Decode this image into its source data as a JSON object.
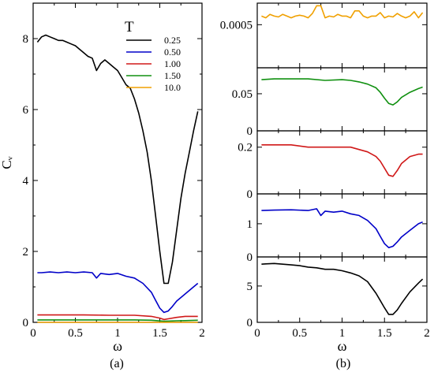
{
  "panel_labels": {
    "a": "(a)",
    "b": "(b)"
  },
  "chart_data": [
    {
      "type": "line",
      "panel": "(a)",
      "xlabel": "ω",
      "ylabel": "Cᵥ",
      "xlim": [
        0,
        2
      ],
      "ylim": [
        0,
        9
      ],
      "xticks": [
        "0",
        "0.5",
        "1",
        "1.5",
        "2"
      ],
      "yticks": [
        "0",
        "2",
        "4",
        "6",
        "8"
      ],
      "legend": {
        "title": "T",
        "position": "top-right"
      },
      "series": [
        {
          "name": "0.25",
          "color": "#000000",
          "x": [
            0.05,
            0.1,
            0.15,
            0.2,
            0.25,
            0.3,
            0.35,
            0.4,
            0.45,
            0.5,
            0.55,
            0.6,
            0.65,
            0.7,
            0.75,
            0.8,
            0.85,
            0.9,
            0.95,
            1.0,
            1.05,
            1.1,
            1.15,
            1.2,
            1.25,
            1.3,
            1.35,
            1.4,
            1.45,
            1.5,
            1.55,
            1.6,
            1.65,
            1.7,
            1.75,
            1.8,
            1.85,
            1.9,
            1.95
          ],
          "y": [
            7.9,
            8.05,
            8.1,
            8.05,
            8.0,
            7.95,
            7.95,
            7.9,
            7.85,
            7.8,
            7.7,
            7.6,
            7.5,
            7.45,
            7.1,
            7.3,
            7.4,
            7.3,
            7.2,
            7.1,
            6.9,
            6.7,
            6.6,
            6.3,
            5.9,
            5.4,
            4.8,
            4.0,
            3.0,
            2.0,
            1.1,
            1.1,
            1.7,
            2.6,
            3.5,
            4.2,
            4.8,
            5.4,
            5.95
          ]
        },
        {
          "name": "0.50",
          "color": "#0000c8",
          "x": [
            0.05,
            0.1,
            0.2,
            0.3,
            0.4,
            0.5,
            0.6,
            0.7,
            0.75,
            0.8,
            0.9,
            1.0,
            1.1,
            1.2,
            1.3,
            1.4,
            1.45,
            1.5,
            1.55,
            1.6,
            1.65,
            1.7,
            1.8,
            1.9,
            1.95
          ],
          "y": [
            1.4,
            1.4,
            1.42,
            1.4,
            1.42,
            1.4,
            1.42,
            1.4,
            1.25,
            1.38,
            1.35,
            1.38,
            1.3,
            1.25,
            1.1,
            0.85,
            0.62,
            0.4,
            0.28,
            0.32,
            0.45,
            0.6,
            0.8,
            1.0,
            1.1
          ]
        },
        {
          "name": "1.00",
          "color": "#d01818",
          "x": [
            0.05,
            0.3,
            0.6,
            0.9,
            1.2,
            1.4,
            1.5,
            1.55,
            1.6,
            1.7,
            1.8,
            1.95
          ],
          "y": [
            0.21,
            0.21,
            0.21,
            0.2,
            0.2,
            0.17,
            0.12,
            0.08,
            0.1,
            0.14,
            0.17,
            0.17
          ]
        },
        {
          "name": "1.50",
          "color": "#109010",
          "x": [
            0.05,
            0.3,
            0.6,
            0.9,
            1.2,
            1.4,
            1.5,
            1.55,
            1.6,
            1.7,
            1.8,
            1.95
          ],
          "y": [
            0.07,
            0.07,
            0.07,
            0.07,
            0.07,
            0.06,
            0.04,
            0.03,
            0.035,
            0.045,
            0.05,
            0.06
          ]
        },
        {
          "name": "10.0",
          "color": "#f0a000",
          "x": [
            0.05,
            0.5,
            1.0,
            1.5,
            1.95
          ],
          "y": [
            0.0006,
            0.0006,
            0.0006,
            0.0006,
            0.0006
          ]
        }
      ]
    },
    {
      "type": "line",
      "panel": "(b)",
      "xlabel": "ω",
      "xlim": [
        0,
        2
      ],
      "xticks": [
        "0",
        "0.5",
        "1",
        "1.5",
        "2"
      ],
      "subplots": [
        {
          "color": "#f0a000",
          "ylim": [
            0,
            0.00075
          ],
          "yticks": [
            {
              "v": 0.0005,
              "label": "0.0005"
            }
          ],
          "x": [
            0.05,
            0.1,
            0.15,
            0.2,
            0.25,
            0.3,
            0.35,
            0.4,
            0.45,
            0.5,
            0.55,
            0.6,
            0.65,
            0.7,
            0.75,
            0.8,
            0.85,
            0.9,
            0.95,
            1.0,
            1.05,
            1.1,
            1.15,
            1.2,
            1.25,
            1.3,
            1.35,
            1.4,
            1.45,
            1.5,
            1.55,
            1.6,
            1.65,
            1.7,
            1.75,
            1.8,
            1.85,
            1.9,
            1.95
          ],
          "y": [
            0.0006,
            0.00058,
            0.00062,
            0.0006,
            0.00059,
            0.00062,
            0.0006,
            0.00058,
            0.0006,
            0.00061,
            0.0006,
            0.00058,
            0.00063,
            0.00072,
            0.00072,
            0.00058,
            0.0006,
            0.00059,
            0.00062,
            0.0006,
            0.0006,
            0.00058,
            0.00066,
            0.00066,
            0.0006,
            0.00058,
            0.0006,
            0.0006,
            0.00064,
            0.00058,
            0.0006,
            0.00059,
            0.00063,
            0.0006,
            0.00058,
            0.0006,
            0.00065,
            0.00058,
            0.00064
          ]
        },
        {
          "color": "#109010",
          "ylim": [
            0,
            0.085
          ],
          "yticks": [
            {
              "v": 0,
              "label": "0"
            },
            {
              "v": 0.05,
              "label": "0.05"
            }
          ],
          "x": [
            0.05,
            0.2,
            0.4,
            0.6,
            0.8,
            1.0,
            1.1,
            1.2,
            1.3,
            1.4,
            1.45,
            1.5,
            1.55,
            1.6,
            1.65,
            1.7,
            1.8,
            1.9,
            1.95
          ],
          "y": [
            0.069,
            0.07,
            0.07,
            0.07,
            0.068,
            0.069,
            0.068,
            0.066,
            0.063,
            0.058,
            0.052,
            0.044,
            0.037,
            0.035,
            0.039,
            0.045,
            0.052,
            0.057,
            0.059
          ]
        },
        {
          "color": "#d01818",
          "ylim": [
            0,
            0.27
          ],
          "yticks": [
            {
              "v": 0,
              "label": "0"
            },
            {
              "v": 0.2,
              "label": "0.2"
            }
          ],
          "x": [
            0.05,
            0.2,
            0.4,
            0.6,
            0.8,
            1.0,
            1.1,
            1.2,
            1.3,
            1.4,
            1.45,
            1.5,
            1.55,
            1.6,
            1.65,
            1.7,
            1.8,
            1.9,
            1.95
          ],
          "y": [
            0.21,
            0.21,
            0.21,
            0.2,
            0.2,
            0.2,
            0.2,
            0.19,
            0.18,
            0.16,
            0.14,
            0.11,
            0.08,
            0.075,
            0.1,
            0.13,
            0.16,
            0.17,
            0.17
          ]
        },
        {
          "color": "#0000c8",
          "ylim": [
            0,
            1.9
          ],
          "yticks": [
            {
              "v": 0,
              "label": "0"
            },
            {
              "v": 1,
              "label": "1"
            }
          ],
          "x": [
            0.05,
            0.2,
            0.4,
            0.6,
            0.7,
            0.75,
            0.8,
            0.9,
            1.0,
            1.1,
            1.2,
            1.3,
            1.4,
            1.45,
            1.5,
            1.55,
            1.6,
            1.65,
            1.7,
            1.8,
            1.9,
            1.95
          ],
          "y": [
            1.4,
            1.41,
            1.42,
            1.4,
            1.45,
            1.25,
            1.38,
            1.35,
            1.38,
            1.3,
            1.25,
            1.1,
            0.85,
            0.62,
            0.4,
            0.28,
            0.32,
            0.45,
            0.6,
            0.8,
            1.0,
            1.05
          ]
        },
        {
          "color": "#000000",
          "ylim": [
            0,
            9
          ],
          "yticks": [
            {
              "v": 0,
              "label": "0"
            },
            {
              "v": 5,
              "label": "5"
            }
          ],
          "x": [
            0.05,
            0.1,
            0.2,
            0.3,
            0.4,
            0.5,
            0.6,
            0.7,
            0.8,
            0.9,
            1.0,
            1.1,
            1.2,
            1.3,
            1.4,
            1.45,
            1.5,
            1.55,
            1.6,
            1.65,
            1.7,
            1.8,
            1.9,
            1.95
          ],
          "y": [
            8.0,
            8.05,
            8.1,
            8.0,
            7.9,
            7.8,
            7.6,
            7.5,
            7.3,
            7.3,
            7.1,
            6.8,
            6.4,
            5.6,
            4.0,
            3.0,
            2.0,
            1.1,
            1.1,
            1.7,
            2.6,
            4.2,
            5.4,
            5.95
          ]
        }
      ]
    }
  ]
}
